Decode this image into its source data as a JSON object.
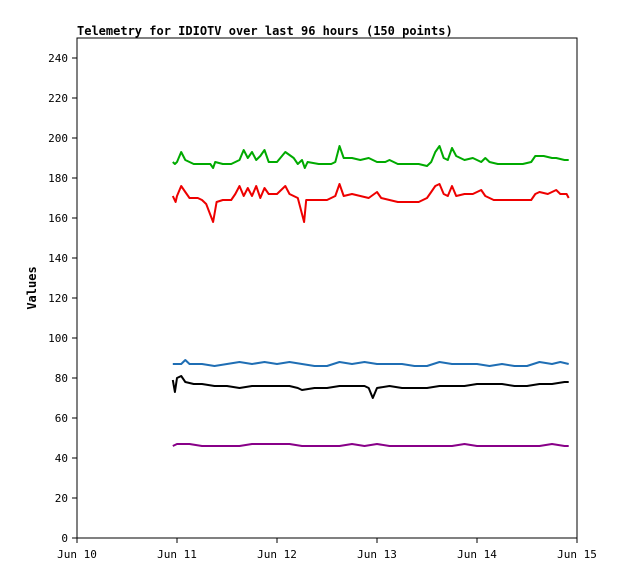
{
  "chart_data": {
    "type": "line",
    "title": "Telemetry for IDIOTV over last 96 hours (150 points)",
    "xlabel": "",
    "ylabel": "Values",
    "xlim": [
      "Jun 10",
      "Jun 15"
    ],
    "ylim": [
      0,
      250
    ],
    "grid": false,
    "x_tick_labels": [
      "Jun 10",
      "Jun 11",
      "Jun 12",
      "Jun 13",
      "Jun 14",
      "Jun 15"
    ],
    "y_tick_labels": [
      "0",
      "20",
      "40",
      "60",
      "80",
      "100",
      "120",
      "140",
      "160",
      "180",
      "200",
      "220",
      "240"
    ],
    "y_ticks": [
      0,
      20,
      40,
      60,
      80,
      100,
      120,
      140,
      160,
      180,
      200,
      220,
      240
    ],
    "x_start": "2024-06-10T00:00",
    "x_day_span": 5,
    "series": [
      {
        "color": "#00aa00",
        "points": [
          [
            "2024-06-10T23:00",
            188
          ],
          [
            "2024-06-10T23:30",
            187
          ],
          [
            "2024-06-11T00:00",
            188
          ],
          [
            "2024-06-11T01:00",
            193
          ],
          [
            "2024-06-11T02:00",
            189
          ],
          [
            "2024-06-11T04:00",
            187
          ],
          [
            "2024-06-11T06:00",
            187
          ],
          [
            "2024-06-11T08:00",
            187
          ],
          [
            "2024-06-11T08:40",
            185
          ],
          [
            "2024-06-11T09:10",
            188
          ],
          [
            "2024-06-11T11:00",
            187
          ],
          [
            "2024-06-11T13:00",
            187
          ],
          [
            "2024-06-11T15:00",
            189
          ],
          [
            "2024-06-11T16:00",
            194
          ],
          [
            "2024-06-11T17:00",
            190
          ],
          [
            "2024-06-11T18:00",
            193
          ],
          [
            "2024-06-11T19:00",
            189
          ],
          [
            "2024-06-11T20:00",
            191
          ],
          [
            "2024-06-11T21:00",
            194
          ],
          [
            "2024-06-11T22:00",
            188
          ],
          [
            "2024-06-12T00:00",
            188
          ],
          [
            "2024-06-12T02:00",
            193
          ],
          [
            "2024-06-12T04:00",
            190
          ],
          [
            "2024-06-12T05:00",
            187
          ],
          [
            "2024-06-12T06:00",
            189
          ],
          [
            "2024-06-12T06:40",
            185
          ],
          [
            "2024-06-12T07:20",
            188
          ],
          [
            "2024-06-12T10:00",
            187
          ],
          [
            "2024-06-12T13:00",
            187
          ],
          [
            "2024-06-12T14:00",
            188
          ],
          [
            "2024-06-12T15:00",
            196
          ],
          [
            "2024-06-12T16:00",
            190
          ],
          [
            "2024-06-12T18:00",
            190
          ],
          [
            "2024-06-12T20:00",
            189
          ],
          [
            "2024-06-12T22:00",
            190
          ],
          [
            "2024-06-13T00:00",
            188
          ],
          [
            "2024-06-13T02:00",
            188
          ],
          [
            "2024-06-13T03:00",
            189
          ],
          [
            "2024-06-13T05:00",
            187
          ],
          [
            "2024-06-13T08:00",
            187
          ],
          [
            "2024-06-13T10:00",
            187
          ],
          [
            "2024-06-13T12:00",
            186
          ],
          [
            "2024-06-13T13:00",
            188
          ],
          [
            "2024-06-13T14:00",
            193
          ],
          [
            "2024-06-13T15:00",
            196
          ],
          [
            "2024-06-13T16:00",
            190
          ],
          [
            "2024-06-13T17:00",
            189
          ],
          [
            "2024-06-13T18:00",
            195
          ],
          [
            "2024-06-13T19:00",
            191
          ],
          [
            "2024-06-13T21:00",
            189
          ],
          [
            "2024-06-13T23:00",
            190
          ],
          [
            "2024-06-14T01:00",
            188
          ],
          [
            "2024-06-14T02:00",
            190
          ],
          [
            "2024-06-14T03:00",
            188
          ],
          [
            "2024-06-14T05:00",
            187
          ],
          [
            "2024-06-14T07:00",
            187
          ],
          [
            "2024-06-14T09:00",
            187
          ],
          [
            "2024-06-14T11:00",
            187
          ],
          [
            "2024-06-14T13:00",
            188
          ],
          [
            "2024-06-14T14:00",
            191
          ],
          [
            "2024-06-14T16:00",
            191
          ],
          [
            "2024-06-14T18:00",
            190
          ],
          [
            "2024-06-14T19:00",
            190
          ],
          [
            "2024-06-14T21:00",
            189
          ],
          [
            "2024-06-14T22:00",
            189
          ]
        ]
      },
      {
        "color": "#ee0000",
        "points": [
          [
            "2024-06-10T23:00",
            171
          ],
          [
            "2024-06-10T23:40",
            168
          ],
          [
            "2024-06-11T00:00",
            171
          ],
          [
            "2024-06-11T01:00",
            176
          ],
          [
            "2024-06-11T02:00",
            173
          ],
          [
            "2024-06-11T03:00",
            170
          ],
          [
            "2024-06-11T05:00",
            170
          ],
          [
            "2024-06-11T06:00",
            169
          ],
          [
            "2024-06-11T07:00",
            167
          ],
          [
            "2024-06-11T08:40",
            158
          ],
          [
            "2024-06-11T09:30",
            168
          ],
          [
            "2024-06-11T11:00",
            169
          ],
          [
            "2024-06-11T13:00",
            169
          ],
          [
            "2024-06-11T14:00",
            172
          ],
          [
            "2024-06-11T15:00",
            176
          ],
          [
            "2024-06-11T16:00",
            171
          ],
          [
            "2024-06-11T17:00",
            175
          ],
          [
            "2024-06-11T18:00",
            171
          ],
          [
            "2024-06-11T19:00",
            176
          ],
          [
            "2024-06-11T20:00",
            170
          ],
          [
            "2024-06-11T21:00",
            175
          ],
          [
            "2024-06-11T22:00",
            172
          ],
          [
            "2024-06-12T00:00",
            172
          ],
          [
            "2024-06-12T02:00",
            176
          ],
          [
            "2024-06-12T03:00",
            172
          ],
          [
            "2024-06-12T05:00",
            170
          ],
          [
            "2024-06-12T06:30",
            158
          ],
          [
            "2024-06-12T07:00",
            169
          ],
          [
            "2024-06-12T09:00",
            169
          ],
          [
            "2024-06-12T12:00",
            169
          ],
          [
            "2024-06-12T14:00",
            171
          ],
          [
            "2024-06-12T15:00",
            177
          ],
          [
            "2024-06-12T16:00",
            171
          ],
          [
            "2024-06-12T18:00",
            172
          ],
          [
            "2024-06-12T20:00",
            171
          ],
          [
            "2024-06-12T22:00",
            170
          ],
          [
            "2024-06-13T00:00",
            173
          ],
          [
            "2024-06-13T01:00",
            170
          ],
          [
            "2024-06-13T03:00",
            169
          ],
          [
            "2024-06-13T05:00",
            168
          ],
          [
            "2024-06-13T08:00",
            168
          ],
          [
            "2024-06-13T10:00",
            168
          ],
          [
            "2024-06-13T12:00",
            170
          ],
          [
            "2024-06-13T13:00",
            173
          ],
          [
            "2024-06-13T14:00",
            176
          ],
          [
            "2024-06-13T15:00",
            177
          ],
          [
            "2024-06-13T16:00",
            172
          ],
          [
            "2024-06-13T17:00",
            171
          ],
          [
            "2024-06-13T18:00",
            176
          ],
          [
            "2024-06-13T19:00",
            171
          ],
          [
            "2024-06-13T21:00",
            172
          ],
          [
            "2024-06-13T23:00",
            172
          ],
          [
            "2024-06-14T01:00",
            174
          ],
          [
            "2024-06-14T02:00",
            171
          ],
          [
            "2024-06-14T04:00",
            169
          ],
          [
            "2024-06-14T07:00",
            169
          ],
          [
            "2024-06-14T10:00",
            169
          ],
          [
            "2024-06-14T13:00",
            169
          ],
          [
            "2024-06-14T14:00",
            172
          ],
          [
            "2024-06-14T15:00",
            173
          ],
          [
            "2024-06-14T17:00",
            172
          ],
          [
            "2024-06-14T19:00",
            174
          ],
          [
            "2024-06-14T20:00",
            172
          ],
          [
            "2024-06-14T21:30",
            172
          ],
          [
            "2024-06-14T22:00",
            170
          ]
        ]
      },
      {
        "color": "#1f6eb4",
        "points": [
          [
            "2024-06-10T23:00",
            87
          ],
          [
            "2024-06-11T01:00",
            87
          ],
          [
            "2024-06-11T02:00",
            89
          ],
          [
            "2024-06-11T03:00",
            87
          ],
          [
            "2024-06-11T06:00",
            87
          ],
          [
            "2024-06-11T09:00",
            86
          ],
          [
            "2024-06-11T12:00",
            87
          ],
          [
            "2024-06-11T15:00",
            88
          ],
          [
            "2024-06-11T18:00",
            87
          ],
          [
            "2024-06-11T21:00",
            88
          ],
          [
            "2024-06-12T00:00",
            87
          ],
          [
            "2024-06-12T03:00",
            88
          ],
          [
            "2024-06-12T06:00",
            87
          ],
          [
            "2024-06-12T09:00",
            86
          ],
          [
            "2024-06-12T12:00",
            86
          ],
          [
            "2024-06-12T15:00",
            88
          ],
          [
            "2024-06-12T18:00",
            87
          ],
          [
            "2024-06-12T21:00",
            88
          ],
          [
            "2024-06-13T00:00",
            87
          ],
          [
            "2024-06-13T03:00",
            87
          ],
          [
            "2024-06-13T06:00",
            87
          ],
          [
            "2024-06-13T09:00",
            86
          ],
          [
            "2024-06-13T12:00",
            86
          ],
          [
            "2024-06-13T15:00",
            88
          ],
          [
            "2024-06-13T18:00",
            87
          ],
          [
            "2024-06-13T21:00",
            87
          ],
          [
            "2024-06-14T00:00",
            87
          ],
          [
            "2024-06-14T03:00",
            86
          ],
          [
            "2024-06-14T06:00",
            87
          ],
          [
            "2024-06-14T09:00",
            86
          ],
          [
            "2024-06-14T12:00",
            86
          ],
          [
            "2024-06-14T15:00",
            88
          ],
          [
            "2024-06-14T18:00",
            87
          ],
          [
            "2024-06-14T20:00",
            88
          ],
          [
            "2024-06-14T22:00",
            87
          ]
        ]
      },
      {
        "color": "#000000",
        "points": [
          [
            "2024-06-10T23:00",
            79
          ],
          [
            "2024-06-10T23:30",
            73
          ],
          [
            "2024-06-11T00:00",
            80
          ],
          [
            "2024-06-11T01:00",
            81
          ],
          [
            "2024-06-11T02:00",
            78
          ],
          [
            "2024-06-11T04:00",
            77
          ],
          [
            "2024-06-11T06:00",
            77
          ],
          [
            "2024-06-11T09:00",
            76
          ],
          [
            "2024-06-11T12:00",
            76
          ],
          [
            "2024-06-11T15:00",
            75
          ],
          [
            "2024-06-11T18:00",
            76
          ],
          [
            "2024-06-11T21:00",
            76
          ],
          [
            "2024-06-12T00:00",
            76
          ],
          [
            "2024-06-12T03:00",
            76
          ],
          [
            "2024-06-12T05:00",
            75
          ],
          [
            "2024-06-12T06:00",
            74
          ],
          [
            "2024-06-12T09:00",
            75
          ],
          [
            "2024-06-12T12:00",
            75
          ],
          [
            "2024-06-12T15:00",
            76
          ],
          [
            "2024-06-12T18:00",
            76
          ],
          [
            "2024-06-12T21:00",
            76
          ],
          [
            "2024-06-12T22:00",
            75
          ],
          [
            "2024-06-12T23:00",
            70
          ],
          [
            "2024-06-13T00:00",
            75
          ],
          [
            "2024-06-13T03:00",
            76
          ],
          [
            "2024-06-13T06:00",
            75
          ],
          [
            "2024-06-13T09:00",
            75
          ],
          [
            "2024-06-13T12:00",
            75
          ],
          [
            "2024-06-13T15:00",
            76
          ],
          [
            "2024-06-13T18:00",
            76
          ],
          [
            "2024-06-13T21:00",
            76
          ],
          [
            "2024-06-14T00:00",
            77
          ],
          [
            "2024-06-14T03:00",
            77
          ],
          [
            "2024-06-14T06:00",
            77
          ],
          [
            "2024-06-14T09:00",
            76
          ],
          [
            "2024-06-14T12:00",
            76
          ],
          [
            "2024-06-14T15:00",
            77
          ],
          [
            "2024-06-14T18:00",
            77
          ],
          [
            "2024-06-14T21:00",
            78
          ],
          [
            "2024-06-14T22:00",
            78
          ]
        ]
      },
      {
        "color": "#880088",
        "points": [
          [
            "2024-06-10T23:00",
            46
          ],
          [
            "2024-06-11T00:00",
            47
          ],
          [
            "2024-06-11T03:00",
            47
          ],
          [
            "2024-06-11T06:00",
            46
          ],
          [
            "2024-06-11T09:00",
            46
          ],
          [
            "2024-06-11T12:00",
            46
          ],
          [
            "2024-06-11T15:00",
            46
          ],
          [
            "2024-06-11T18:00",
            47
          ],
          [
            "2024-06-11T21:00",
            47
          ],
          [
            "2024-06-12T00:00",
            47
          ],
          [
            "2024-06-12T03:00",
            47
          ],
          [
            "2024-06-12T06:00",
            46
          ],
          [
            "2024-06-12T09:00",
            46
          ],
          [
            "2024-06-12T12:00",
            46
          ],
          [
            "2024-06-12T15:00",
            46
          ],
          [
            "2024-06-12T18:00",
            47
          ],
          [
            "2024-06-12T21:00",
            46
          ],
          [
            "2024-06-13T00:00",
            47
          ],
          [
            "2024-06-13T03:00",
            46
          ],
          [
            "2024-06-13T06:00",
            46
          ],
          [
            "2024-06-13T09:00",
            46
          ],
          [
            "2024-06-13T12:00",
            46
          ],
          [
            "2024-06-13T15:00",
            46
          ],
          [
            "2024-06-13T18:00",
            46
          ],
          [
            "2024-06-13T21:00",
            47
          ],
          [
            "2024-06-14T00:00",
            46
          ],
          [
            "2024-06-14T03:00",
            46
          ],
          [
            "2024-06-14T06:00",
            46
          ],
          [
            "2024-06-14T09:00",
            46
          ],
          [
            "2024-06-14T12:00",
            46
          ],
          [
            "2024-06-14T15:00",
            46
          ],
          [
            "2024-06-14T18:00",
            47
          ],
          [
            "2024-06-14T21:00",
            46
          ],
          [
            "2024-06-14T22:00",
            46
          ]
        ]
      }
    ]
  }
}
